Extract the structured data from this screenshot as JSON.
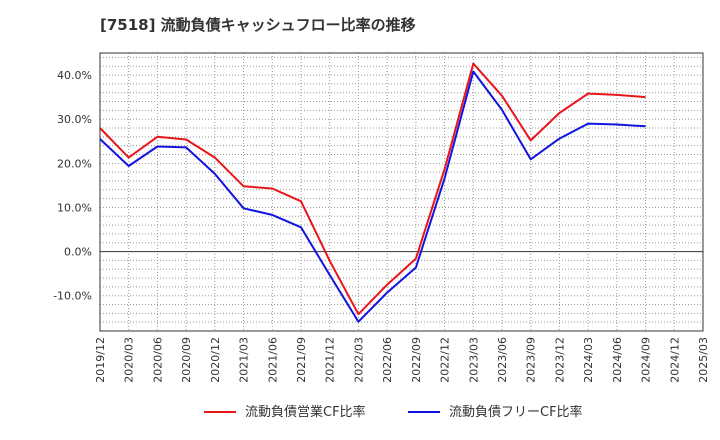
{
  "chart_data": {
    "type": "line",
    "title": "[7518]  流動負債キャッシュフロー比率の推移",
    "xlabel": "",
    "ylabel": "",
    "x_ticks": [
      "2019/12",
      "2020/03",
      "2020/06",
      "2020/09",
      "2020/12",
      "2021/03",
      "2021/06",
      "2021/09",
      "2021/12",
      "2022/03",
      "2022/06",
      "2022/09",
      "2022/12",
      "2023/03",
      "2023/06",
      "2023/09",
      "2023/12",
      "2024/03",
      "2024/06",
      "2024/09",
      "2024/12",
      "2025/03"
    ],
    "y_ticks": [
      "-10.0%",
      "0.0%",
      "10.0%",
      "20.0%",
      "30.0%",
      "40.0%"
    ],
    "y_tick_values": [
      -10,
      0,
      10,
      20,
      30,
      40
    ],
    "ylim": [
      -18,
      45
    ],
    "grid": true,
    "legend_position": "bottom",
    "x": [
      "2019/12",
      "2020/03",
      "2020/06",
      "2020/09",
      "2020/12",
      "2021/03",
      "2021/06",
      "2021/09",
      "2021/12",
      "2022/03",
      "2022/06",
      "2022/09",
      "2022/12",
      "2023/03",
      "2023/06",
      "2023/09",
      "2023/12",
      "2024/03",
      "2024/06",
      "2024/09"
    ],
    "series": [
      {
        "name": "流動負債営業CF比率",
        "color": "#e8151b",
        "values": [
          28.0,
          21.3,
          26.0,
          25.4,
          21.3,
          14.8,
          14.3,
          11.4,
          -2.1,
          -14.2,
          -7.5,
          -1.6,
          18.7,
          42.6,
          35.3,
          25.2,
          31.4,
          35.8,
          35.5,
          35.0
        ]
      },
      {
        "name": "流動負債フリーCF比率",
        "color": "#1414e0",
        "values": [
          25.5,
          19.4,
          23.8,
          23.6,
          17.6,
          9.8,
          8.3,
          5.5,
          -5.3,
          -15.9,
          -9.3,
          -3.6,
          16.6,
          40.8,
          32.1,
          20.9,
          25.6,
          29.0,
          28.8,
          28.4
        ]
      }
    ]
  }
}
